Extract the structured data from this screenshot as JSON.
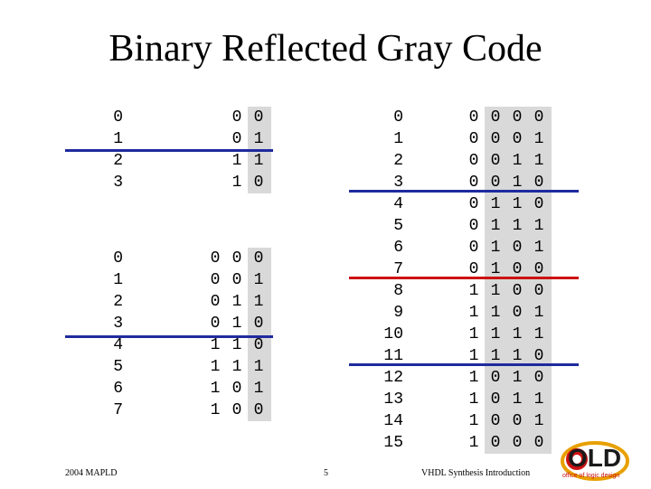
{
  "slide": {
    "title": "Binary Reflected Gray Code",
    "footer_left": "2004 MAPLD",
    "footer_center": "5",
    "footer_right": "VHDL Synthesis Introduction",
    "logo_text": "OLD",
    "logo_subtext": "office of logic design"
  },
  "colors": {
    "blue": "#1f2a9e",
    "red": "#cc1111",
    "shade": "#d9d9d9"
  },
  "tables": {
    "t2_index": [
      "0",
      "1",
      "2",
      "3"
    ],
    "t2_code": [
      [
        "0",
        "0"
      ],
      [
        "0",
        "1"
      ],
      [
        "1",
        "1"
      ],
      [
        "1",
        "0"
      ]
    ],
    "t3_index": [
      "0",
      "1",
      "2",
      "3",
      "4",
      "5",
      "6",
      "7"
    ],
    "t3_code": [
      [
        "0",
        "0",
        "0"
      ],
      [
        "0",
        "0",
        "1"
      ],
      [
        "0",
        "1",
        "1"
      ],
      [
        "0",
        "1",
        "0"
      ],
      [
        "1",
        "1",
        "0"
      ],
      [
        "1",
        "1",
        "1"
      ],
      [
        "1",
        "0",
        "1"
      ],
      [
        "1",
        "0",
        "0"
      ]
    ],
    "t4_index": [
      "0",
      "1",
      "2",
      "3",
      "4",
      "5",
      "6",
      "7",
      "8",
      "9",
      "10",
      "11",
      "12",
      "13",
      "14",
      "15"
    ],
    "t4_code": [
      [
        "0",
        "0",
        "0",
        "0"
      ],
      [
        "0",
        "0",
        "0",
        "1"
      ],
      [
        "0",
        "0",
        "1",
        "1"
      ],
      [
        "0",
        "0",
        "1",
        "0"
      ],
      [
        "0",
        "1",
        "1",
        "0"
      ],
      [
        "0",
        "1",
        "1",
        "1"
      ],
      [
        "0",
        "1",
        "0",
        "1"
      ],
      [
        "0",
        "1",
        "0",
        "0"
      ],
      [
        "1",
        "1",
        "0",
        "0"
      ],
      [
        "1",
        "1",
        "0",
        "1"
      ],
      [
        "1",
        "1",
        "1",
        "1"
      ],
      [
        "1",
        "1",
        "1",
        "0"
      ],
      [
        "1",
        "0",
        "1",
        "0"
      ],
      [
        "1",
        "0",
        "1",
        "1"
      ],
      [
        "1",
        "0",
        "0",
        "1"
      ],
      [
        "1",
        "0",
        "0",
        "0"
      ]
    ]
  }
}
